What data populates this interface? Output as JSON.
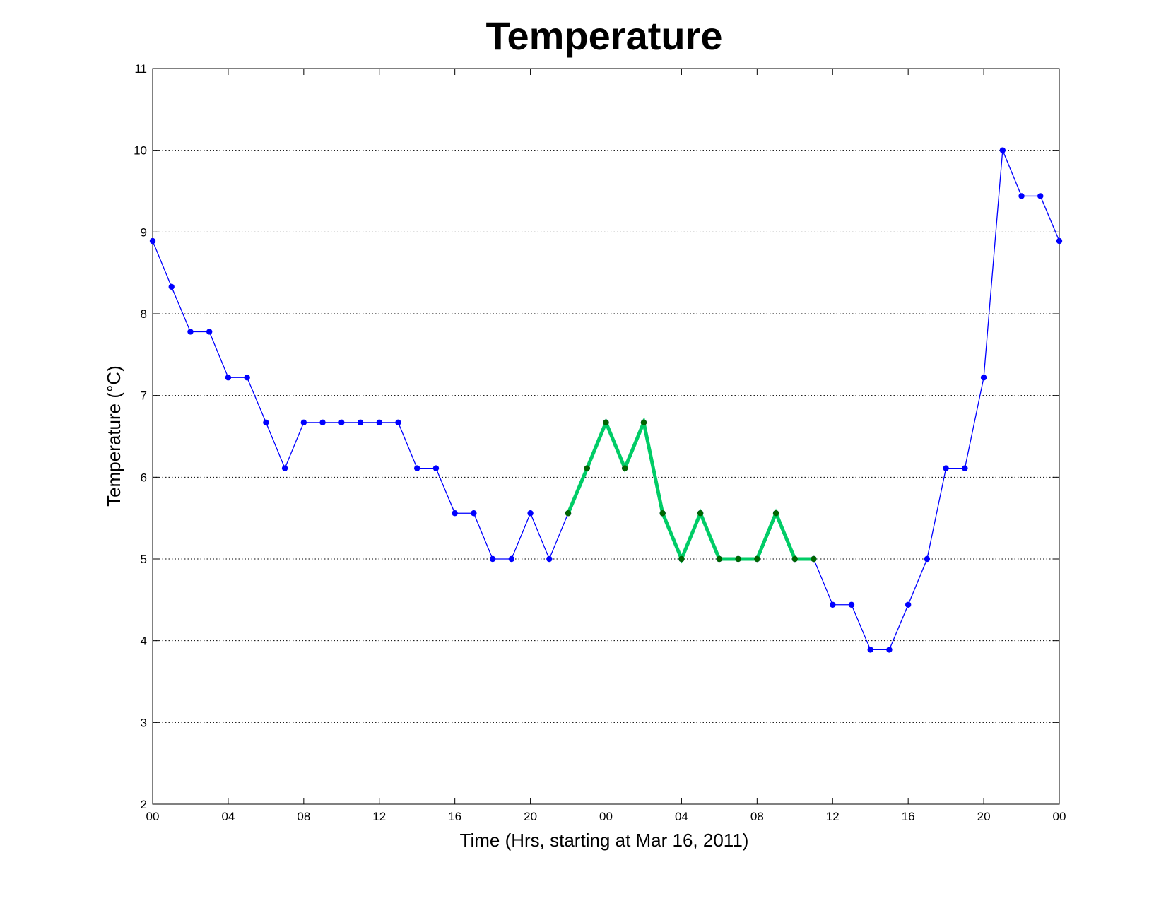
{
  "chart_data": {
    "type": "line",
    "title": "Temperature",
    "xlabel": "Time (Hrs, starting at Mar 16, 2011)",
    "ylabel": "Temperature (°C)",
    "x_tick_labels": [
      "00",
      "04",
      "08",
      "12",
      "16",
      "20",
      "00",
      "04",
      "08",
      "12",
      "16",
      "20",
      "00"
    ],
    "x_tick_hours": [
      0,
      4,
      8,
      12,
      16,
      20,
      24,
      28,
      32,
      36,
      40,
      44,
      48
    ],
    "xlim": [
      0,
      48
    ],
    "ylim": [
      2,
      11
    ],
    "y_ticks": [
      2,
      3,
      4,
      5,
      6,
      7,
      8,
      9,
      10,
      11
    ],
    "grid": "y-dotted",
    "series": [
      {
        "color": "#0000ff",
        "marker_color": "#0000ff",
        "x": [
          0,
          1,
          2,
          3,
          4,
          5,
          6,
          7,
          8,
          9,
          10,
          11,
          12,
          13,
          14,
          15,
          16,
          17,
          18,
          19,
          20,
          21,
          22,
          23,
          24,
          25,
          26,
          27,
          28,
          29,
          30,
          31,
          32,
          33,
          34,
          35,
          36,
          37,
          38,
          39,
          40,
          41,
          42,
          43,
          44,
          45,
          46,
          47,
          48
        ],
        "y": [
          8.89,
          8.33,
          7.78,
          7.78,
          7.22,
          7.22,
          6.67,
          6.11,
          6.67,
          6.67,
          6.67,
          6.67,
          6.67,
          6.67,
          6.11,
          6.11,
          5.56,
          5.56,
          5.0,
          5.0,
          5.56,
          5.0,
          5.56,
          6.11,
          6.67,
          6.11,
          6.67,
          5.56,
          5.0,
          5.56,
          5.0,
          5.0,
          5.0,
          5.56,
          5.0,
          5.0,
          4.44,
          4.44,
          3.89,
          3.89,
          4.44,
          5.0,
          6.11,
          6.11,
          7.22,
          10.0,
          9.44,
          9.44,
          8.89
        ]
      },
      {
        "color": "#00cc66",
        "marker_color": "#006600",
        "x": [
          22,
          23,
          24,
          25,
          26,
          27,
          28,
          29,
          30,
          31,
          32,
          33,
          34,
          35
        ],
        "y": [
          5.56,
          6.11,
          6.67,
          6.11,
          6.67,
          5.56,
          5.0,
          5.56,
          5.0,
          5.0,
          5.0,
          5.56,
          5.0,
          5.0
        ]
      }
    ]
  }
}
